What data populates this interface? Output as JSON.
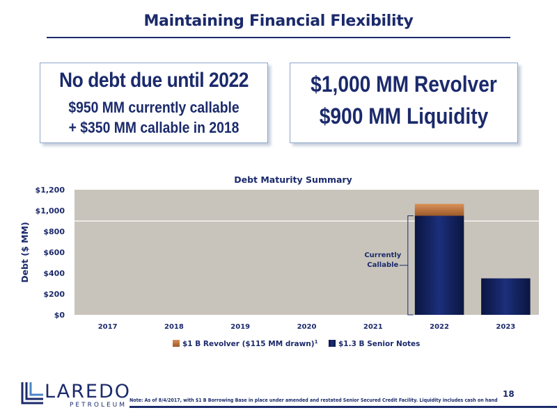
{
  "header": {
    "title": "Maintaining Financial Flexibility"
  },
  "callouts": {
    "left": {
      "line1": "No debt due until 2022",
      "line2": "$950 MM currently callable",
      "line3": "+ $350 MM callable in 2018"
    },
    "right": {
      "line1": "$1,000 MM Revolver",
      "line2": "$900 MM Liquidity"
    }
  },
  "chart_data": {
    "type": "bar",
    "title": "Debt Maturity Summary",
    "ylabel": "Debt ($ MM)",
    "xlabel": "",
    "categories": [
      "2017",
      "2018",
      "2019",
      "2020",
      "2021",
      "2022",
      "2023"
    ],
    "series": [
      {
        "name": "$1.3 B Senior Notes",
        "values": [
          0,
          0,
          0,
          0,
          0,
          950,
          350
        ],
        "color": "#0f1f5c"
      },
      {
        "name": "$1 B Revolver ($115 MM drawn)",
        "name_superscript": "1",
        "values": [
          0,
          0,
          0,
          0,
          0,
          115,
          0
        ],
        "color": "#c07a3e"
      }
    ],
    "stacked": true,
    "ylim": [
      0,
      1200
    ],
    "yticks": [
      0,
      200,
      400,
      600,
      800,
      1000,
      1200
    ],
    "ytick_labels": [
      "$0",
      "$200",
      "$400",
      "$600",
      "$800",
      "$1,000",
      "$1,200"
    ],
    "reference_line": 900,
    "annotation": {
      "text": [
        "Currently",
        "Callable"
      ],
      "category": "2022"
    },
    "legend_placement": "bottom",
    "plot_background": "#c8c4bb"
  },
  "footer": {
    "logo_word": "LAREDO",
    "logo_sub": "PETROLEUM",
    "note": "Note: As of 8/4/2017, with $1 B Borrowing Base in place under amended and restated Senior Secured Credit Facility. Liquidity includes cash on hand",
    "page": "18"
  }
}
